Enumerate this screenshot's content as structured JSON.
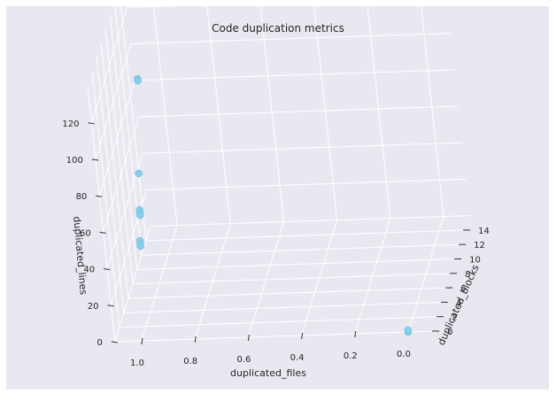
{
  "chart_data": {
    "type": "scatter",
    "projection": "3d",
    "title": "Code duplication metrics",
    "xlabel": "duplicated_files",
    "ylabel": "duplicated_blocks",
    "zlabel": "duplicated_lines",
    "xlim": [
      1.1,
      -0.1
    ],
    "ylim": [
      0,
      16
    ],
    "zlim": [
      0,
      140
    ],
    "x_ticks": [
      "1.0",
      "0.8",
      "0.6",
      "0.4",
      "0.2",
      "0.0"
    ],
    "y_ticks": [
      "0",
      "2",
      "4",
      "6",
      "8",
      "10",
      "12",
      "14"
    ],
    "z_ticks": [
      "0",
      "20",
      "40",
      "60",
      "80",
      "100",
      "120"
    ],
    "grid": true,
    "marker_color": "#87ceeb",
    "pane_color": "#eaeaf2",
    "background_color": "#e8e8f0",
    "points": [
      {
        "x": 1.0,
        "y": 15,
        "z": 140
      },
      {
        "x": 1.0,
        "y": 8,
        "z": 112
      },
      {
        "x": 1.0,
        "y": 8,
        "z": 111
      },
      {
        "x": 1.0,
        "y": 5,
        "z": 72
      },
      {
        "x": 1.0,
        "y": 4,
        "z": 56
      },
      {
        "x": 1.0,
        "y": 4,
        "z": 54
      },
      {
        "x": 1.0,
        "y": 4,
        "z": 53
      },
      {
        "x": 1.0,
        "y": 3,
        "z": 43
      },
      {
        "x": 1.0,
        "y": 3,
        "z": 41
      },
      {
        "x": 1.0,
        "y": 3,
        "z": 40
      },
      {
        "x": 0.0,
        "y": 0,
        "z": 0
      },
      {
        "x": 0.0,
        "y": 0,
        "z": 1
      }
    ]
  }
}
